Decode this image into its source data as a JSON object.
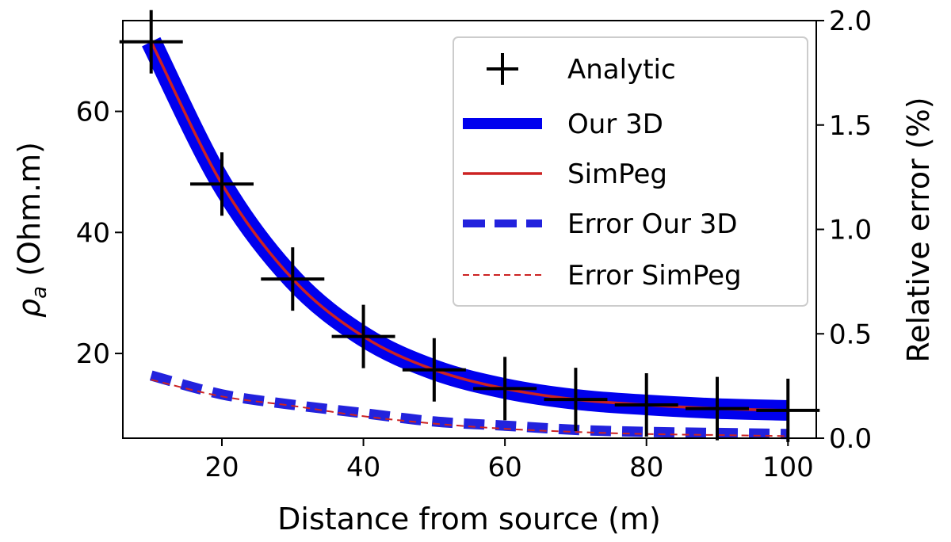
{
  "chart_data": {
    "type": "line",
    "xlabel": "Distance from source (m)",
    "ylabel": "ρa (Ohm.m)",
    "ylabel_main": "ρ",
    "ylabel_sub": "a",
    "ylabel_rest": " (Ohm.m)",
    "y2label": "Relative error (%)",
    "xlim": [
      6,
      104
    ],
    "ylim": [
      6,
      75
    ],
    "y2lim": [
      0,
      2.0
    ],
    "xticks": [
      20,
      40,
      60,
      80,
      100
    ],
    "yticks": [
      20,
      40,
      60
    ],
    "y2ticks": [
      "0.0",
      "0.5",
      "1.0",
      "1.5",
      "2.0"
    ],
    "grid": false,
    "legend_position": "upper-right",
    "x": [
      10,
      20,
      30,
      40,
      50,
      60,
      70,
      80,
      90,
      100
    ],
    "series": [
      {
        "name": "Analytic",
        "axis": "left",
        "style": "plus",
        "color": "#000000",
        "values": [
          71.5,
          48,
          32.3,
          22.8,
          17.3,
          14.2,
          12.4,
          11.5,
          10.9,
          10.6
        ]
      },
      {
        "name": "Our 3D",
        "axis": "left",
        "style": "thick-line",
        "color": "#0000ee",
        "values": [
          71.5,
          48,
          32.3,
          22.8,
          17.3,
          14.2,
          12.4,
          11.5,
          10.9,
          10.6
        ]
      },
      {
        "name": "SimPeg",
        "axis": "left",
        "style": "line",
        "color": "#cc2222",
        "values": [
          71.5,
          48,
          32.3,
          22.8,
          17.3,
          14.2,
          12.4,
          11.5,
          10.9,
          10.6
        ]
      },
      {
        "name": "Error Our 3D",
        "axis": "right",
        "style": "thick-dash",
        "color": "#2222dd",
        "values": [
          0.3,
          0.21,
          0.16,
          0.12,
          0.08,
          0.06,
          0.04,
          0.03,
          0.025,
          0.02
        ]
      },
      {
        "name": "Error SimPeg",
        "axis": "right",
        "style": "thin-dash",
        "color": "#cc2222",
        "values": [
          0.28,
          0.2,
          0.155,
          0.105,
          0.07,
          0.045,
          0.03,
          0.02,
          0.015,
          0.01
        ]
      }
    ]
  }
}
